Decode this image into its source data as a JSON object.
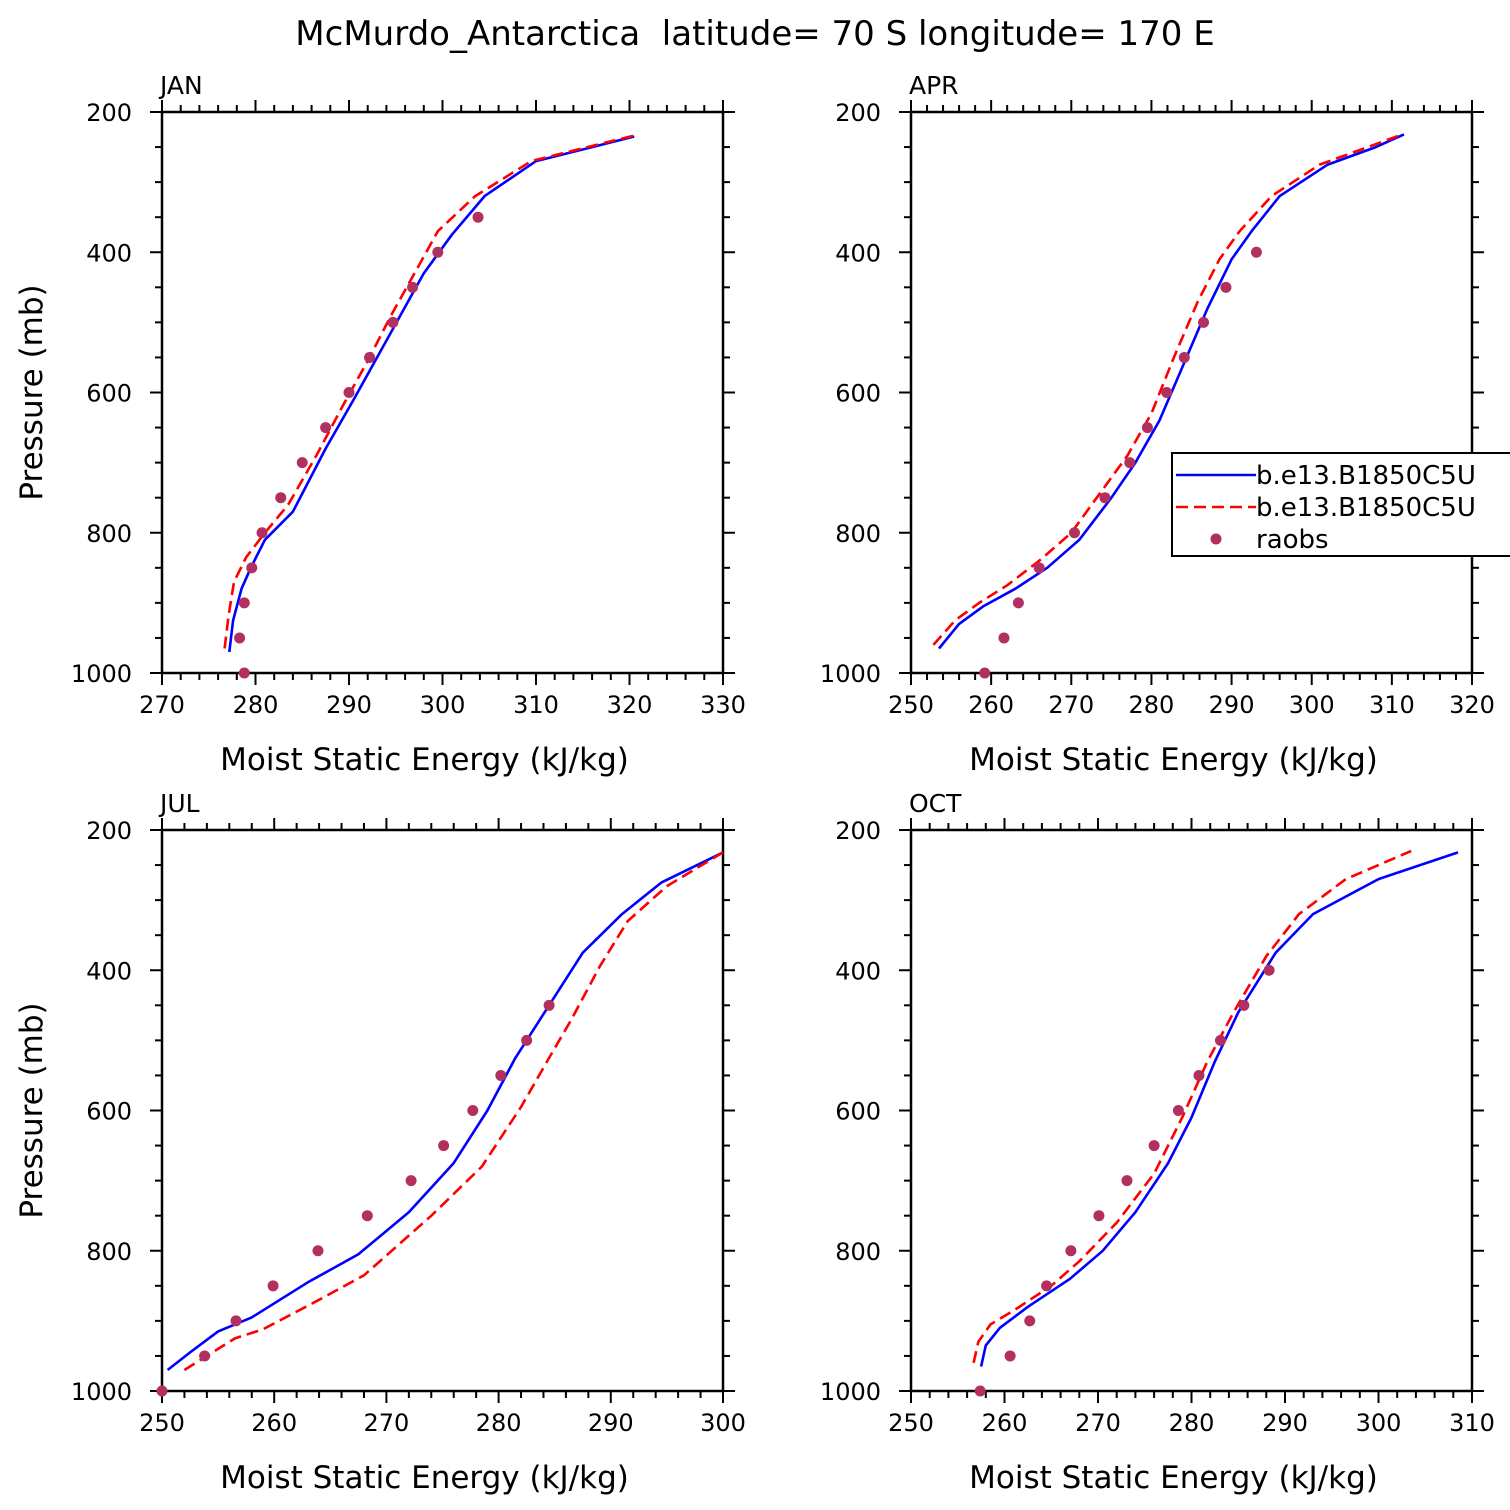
{
  "figure_title": "McMurdo_Antarctica  latitude= 70 S longitude= 170 E",
  "colors": {
    "series1": "#0000ff",
    "series2": "#ff0000",
    "raobs": "#b23060",
    "axis": "#000000"
  },
  "legend": {
    "entries": [
      {
        "label": "b.e13.B1850C5U",
        "style": "solid",
        "color": "#0000ff"
      },
      {
        "label": "b.e13.B1850C5U",
        "style": "dashed",
        "color": "#ff0000"
      },
      {
        "label": "raobs",
        "style": "marker",
        "color": "#b23060"
      }
    ]
  },
  "chart_data": [
    {
      "type": "line",
      "title": "JAN",
      "xlabel": "Moist Static Energy (kJ/kg)",
      "ylabel": "Pressure (mb)",
      "xlim": [
        270,
        330
      ],
      "xticks": [
        270,
        280,
        290,
        300,
        310,
        320,
        330
      ],
      "ylim": [
        200,
        1000
      ],
      "yticks": [
        200,
        400,
        600,
        800,
        1000
      ],
      "series": [
        {
          "name": "b.e13.B1850C5U",
          "style": "solid",
          "points": [
            [
              277.2,
              970
            ],
            [
              277.6,
              925
            ],
            [
              278.5,
              880
            ],
            [
              279.5,
              850
            ],
            [
              281,
              810
            ],
            [
              284,
              770
            ],
            [
              287.5,
              680
            ],
            [
              290.5,
              610
            ],
            [
              293,
              550
            ],
            [
              295.5,
              490
            ],
            [
              298,
              430
            ],
            [
              301,
              375
            ],
            [
              304.5,
              320
            ],
            [
              310,
              270
            ],
            [
              316,
              250
            ],
            [
              320.5,
              235
            ]
          ]
        },
        {
          "name": "b.e13.B1850C5U",
          "style": "dashed",
          "points": [
            [
              276.7,
              965
            ],
            [
              277.1,
              920
            ],
            [
              277.7,
              870
            ],
            [
              279,
              835
            ],
            [
              281,
              800
            ],
            [
              283.5,
              760
            ],
            [
              286.5,
              690
            ],
            [
              289.5,
              615
            ],
            [
              292,
              555
            ],
            [
              294.5,
              490
            ],
            [
              297,
              430
            ],
            [
              299.5,
              370
            ],
            [
              303.5,
              320
            ],
            [
              309.5,
              270
            ],
            [
              315.5,
              250
            ],
            [
              321,
              232
            ]
          ]
        },
        {
          "name": "raobs",
          "style": "marker",
          "points": [
            [
              278.8,
              1000
            ],
            [
              278.3,
              950
            ],
            [
              278.8,
              900
            ],
            [
              279.6,
              850
            ],
            [
              280.7,
              800
            ],
            [
              282.7,
              750
            ],
            [
              285,
              700
            ],
            [
              287.5,
              650
            ],
            [
              290,
              600
            ],
            [
              292.2,
              550
            ],
            [
              294.7,
              500
            ],
            [
              296.8,
              450
            ],
            [
              299.5,
              400
            ],
            [
              303.8,
              350
            ]
          ]
        }
      ]
    },
    {
      "type": "line",
      "title": "APR",
      "xlabel": "Moist Static Energy (kJ/kg)",
      "ylabel": "",
      "xlim": [
        250,
        320
      ],
      "xticks": [
        250,
        260,
        270,
        280,
        290,
        300,
        310,
        320
      ],
      "ylim": [
        200,
        1000
      ],
      "yticks": [
        200,
        400,
        600,
        800,
        1000
      ],
      "series": [
        {
          "name": "b.e13.B1850C5U",
          "style": "solid",
          "points": [
            [
              253.5,
              965
            ],
            [
              256,
              930
            ],
            [
              259,
              905
            ],
            [
              263,
              880
            ],
            [
              267,
              850
            ],
            [
              271,
              810
            ],
            [
              275,
              750
            ],
            [
              278,
              700
            ],
            [
              281,
              640
            ],
            [
              284,
              560
            ],
            [
              287,
              480
            ],
            [
              290,
              410
            ],
            [
              292.5,
              370
            ],
            [
              296,
              320
            ],
            [
              302,
              275
            ],
            [
              308,
              250
            ],
            [
              311.5,
              232
            ]
          ]
        },
        {
          "name": "b.e13.B1850C5U",
          "style": "dashed",
          "points": [
            [
              252.8,
              960
            ],
            [
              255.5,
              925
            ],
            [
              258.5,
              900
            ],
            [
              262,
              875
            ],
            [
              266,
              840
            ],
            [
              270,
              800
            ],
            [
              273.5,
              745
            ],
            [
              277,
              690
            ],
            [
              280,
              630
            ],
            [
              282.8,
              550
            ],
            [
              285.8,
              470
            ],
            [
              288.5,
              410
            ],
            [
              291,
              370
            ],
            [
              295,
              320
            ],
            [
              301,
              275
            ],
            [
              307,
              250
            ],
            [
              311.3,
              232
            ]
          ]
        },
        {
          "name": "raobs",
          "style": "marker",
          "points": [
            [
              259.2,
              1000
            ],
            [
              261.6,
              950
            ],
            [
              263.4,
              900
            ],
            [
              266,
              850
            ],
            [
              270.4,
              800
            ],
            [
              274.2,
              750
            ],
            [
              277.3,
              700
            ],
            [
              279.5,
              650
            ],
            [
              281.9,
              600
            ],
            [
              284.1,
              550
            ],
            [
              286.5,
              500
            ],
            [
              289.3,
              450
            ],
            [
              293.1,
              400
            ]
          ]
        }
      ]
    },
    {
      "type": "line",
      "title": "JUL",
      "xlabel": "Moist Static Energy (kJ/kg)",
      "ylabel": "Pressure (mb)",
      "xlim": [
        250,
        300
      ],
      "xticks": [
        250,
        260,
        270,
        280,
        290,
        300
      ],
      "ylim": [
        200,
        1000
      ],
      "yticks": [
        200,
        400,
        600,
        800,
        1000
      ],
      "series": [
        {
          "name": "b.e13.B1850C5U",
          "style": "solid",
          "points": [
            [
              250.5,
              970
            ],
            [
              252.5,
              945
            ],
            [
              255,
              915
            ],
            [
              258,
              895
            ],
            [
              263,
              845
            ],
            [
              267.5,
              805
            ],
            [
              272,
              745
            ],
            [
              276,
              675
            ],
            [
              279,
              600
            ],
            [
              281.5,
              525
            ],
            [
              284.5,
              450
            ],
            [
              287.5,
              375
            ],
            [
              291,
              320
            ],
            [
              294.5,
              275
            ],
            [
              300,
              232
            ]
          ]
        },
        {
          "name": "b.e13.B1850C5U",
          "style": "dashed",
          "points": [
            [
              252,
              970
            ],
            [
              254,
              950
            ],
            [
              256.5,
              925
            ],
            [
              259,
              912
            ],
            [
              264,
              870
            ],
            [
              268,
              835
            ],
            [
              274,
              750
            ],
            [
              278.5,
              680
            ],
            [
              282,
              595
            ],
            [
              284.5,
              525
            ],
            [
              286.5,
              470
            ],
            [
              289,
              395
            ],
            [
              291.5,
              330
            ],
            [
              295,
              280
            ],
            [
              300,
              232
            ]
          ]
        },
        {
          "name": "raobs",
          "style": "marker",
          "points": [
            [
              250,
              1000
            ],
            [
              253.8,
              950
            ],
            [
              256.6,
              900
            ],
            [
              259.9,
              850
            ],
            [
              263.9,
              800
            ],
            [
              268.3,
              750
            ],
            [
              272.2,
              700
            ],
            [
              275.1,
              650
            ],
            [
              277.7,
              600
            ],
            [
              280.2,
              550
            ],
            [
              282.5,
              500
            ],
            [
              284.5,
              450
            ]
          ]
        }
      ]
    },
    {
      "type": "line",
      "title": "OCT",
      "xlabel": "Moist Static Energy (kJ/kg)",
      "ylabel": "",
      "xlim": [
        250,
        310
      ],
      "xticks": [
        250,
        260,
        270,
        280,
        290,
        300,
        310
      ],
      "ylim": [
        200,
        1000
      ],
      "yticks": [
        200,
        400,
        600,
        800,
        1000
      ],
      "series": [
        {
          "name": "b.e13.B1850C5U",
          "style": "solid",
          "points": [
            [
              257.5,
              965
            ],
            [
              258,
              935
            ],
            [
              259.5,
              910
            ],
            [
              262.5,
              880
            ],
            [
              267,
              840
            ],
            [
              270.5,
              800
            ],
            [
              274,
              745
            ],
            [
              277.5,
              675
            ],
            [
              280,
              610
            ],
            [
              282.5,
              530
            ],
            [
              285,
              460
            ],
            [
              289,
              375
            ],
            [
              293,
              320
            ],
            [
              300,
              270
            ],
            [
              308.5,
              232
            ]
          ]
        },
        {
          "name": "b.e13.B1850C5U",
          "style": "dashed",
          "points": [
            [
              256.7,
              960
            ],
            [
              257.2,
              930
            ],
            [
              258.5,
              905
            ],
            [
              261,
              885
            ],
            [
              265,
              850
            ],
            [
              268,
              815
            ],
            [
              272,
              760
            ],
            [
              276,
              690
            ],
            [
              279,
              610
            ],
            [
              281.7,
              530
            ],
            [
              284.5,
              460
            ],
            [
              288,
              380
            ],
            [
              291.5,
              320
            ],
            [
              296.5,
              270
            ],
            [
              303.5,
              230
            ]
          ]
        },
        {
          "name": "raobs",
          "style": "marker",
          "points": [
            [
              257.4,
              1000
            ],
            [
              260.6,
              950
            ],
            [
              262.7,
              900
            ],
            [
              264.5,
              850
            ],
            [
              267.1,
              800
            ],
            [
              270.1,
              750
            ],
            [
              273.1,
              700
            ],
            [
              276,
              650
            ],
            [
              278.6,
              600
            ],
            [
              280.8,
              550
            ],
            [
              283.1,
              500
            ],
            [
              285.6,
              450
            ],
            [
              288.3,
              400
            ]
          ]
        }
      ]
    }
  ]
}
